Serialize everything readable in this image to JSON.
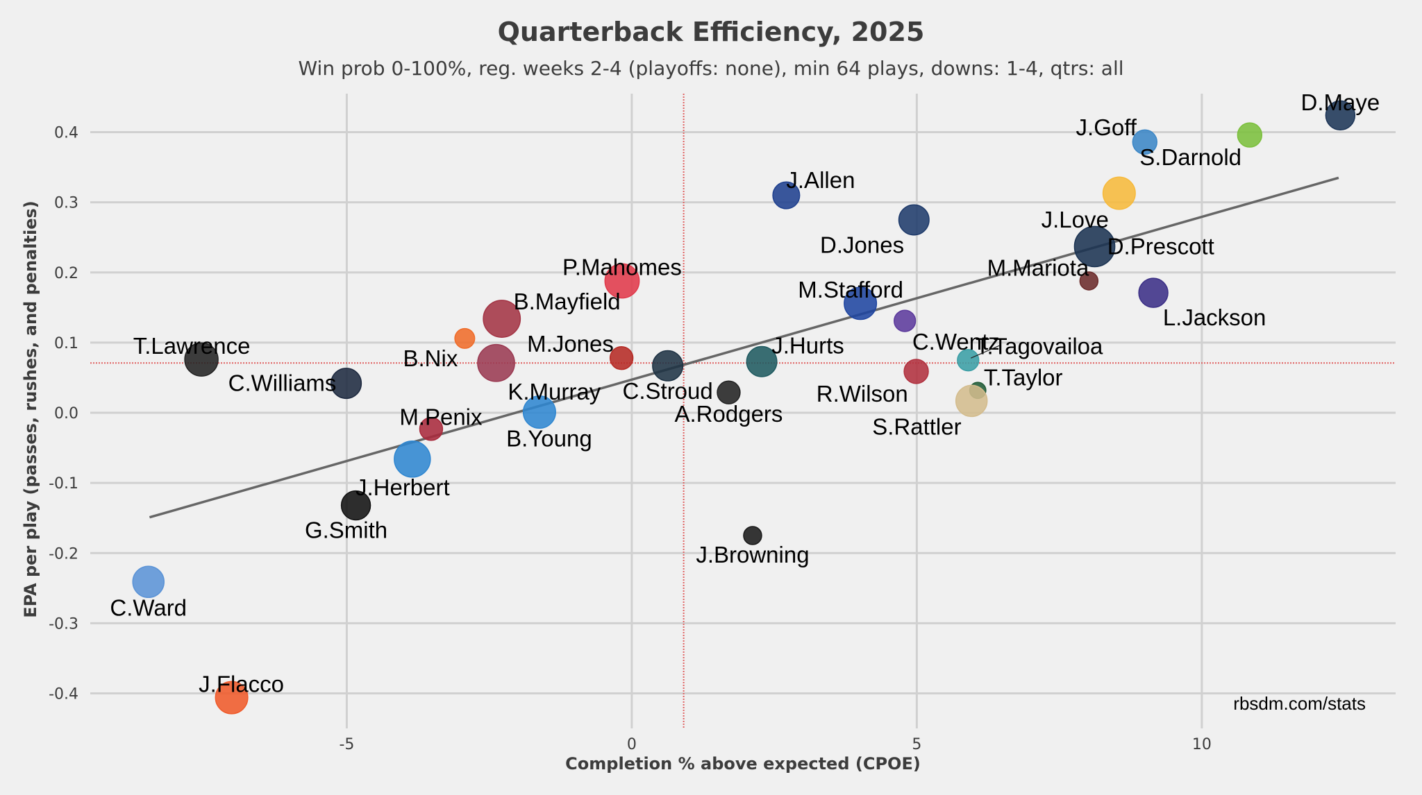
{
  "chart_data": {
    "type": "scatter",
    "title": "Quarterback Efficiency, 2025",
    "subtitle": "Win prob 0-100%, reg. weeks 2-4 (playoffs: none), min 64 plays, downs: 1-4, qtrs: all",
    "xlabel": "Completion % above expected (CPOE)",
    "ylabel": "EPA per play (passes, rushes, and penalties)",
    "xlim": [
      -9.5,
      13.4
    ],
    "ylim": [
      -0.44,
      0.45
    ],
    "x_ticks": [
      {
        "value": -5,
        "label": "-5"
      },
      {
        "value": 0,
        "label": "0"
      },
      {
        "value": 5,
        "label": "5"
      },
      {
        "value": 10,
        "label": "10"
      }
    ],
    "y_ticks": [
      {
        "value": 0.4,
        "label": "0.4"
      },
      {
        "value": 0.3,
        "label": "0.3"
      },
      {
        "value": 0.2,
        "label": "0.2"
      },
      {
        "value": 0.1,
        "label": "0.1"
      },
      {
        "value": 0.0,
        "label": "0.0"
      },
      {
        "value": -0.1,
        "label": "-0.1"
      },
      {
        "value": -0.2,
        "label": "-0.2"
      },
      {
        "value": -0.3,
        "label": "-0.3"
      },
      {
        "value": -0.4,
        "label": "-0.4"
      }
    ],
    "grid": true,
    "mean_lines": {
      "x": 0.91,
      "y": 0.071,
      "color": "#e06060"
    },
    "trend_line": {
      "x": [
        -8.46,
        12.4
      ],
      "y": [
        -0.149,
        0.335
      ],
      "color": "#666666"
    },
    "credit": "rbsdm.com/stats",
    "points": [
      {
        "name": "D.Maye",
        "x": 12.43,
        "y": 0.424,
        "size": 2.6,
        "color": "#1d3557",
        "label_dx": 0,
        "label_dy": -1,
        "anchor": "middle"
      },
      {
        "name": "S.Darnold",
        "x": 10.84,
        "y": 0.396,
        "size": 1.8,
        "color": "#7bbf3c",
        "label_dx": -1,
        "label_dy": 1,
        "anchor": "end"
      },
      {
        "name": "J.Goff",
        "x": 9.0,
        "y": 0.386,
        "size": 1.8,
        "color": "#3b86c6",
        "label_dx": -1,
        "label_dy": -1,
        "anchor": "end"
      },
      {
        "name": "J.Love",
        "x": 8.55,
        "y": 0.313,
        "size": 3.2,
        "color": "#f6b93b",
        "label_dx": -1,
        "label_dy": 1,
        "anchor": "end"
      },
      {
        "name": "J.Allen",
        "x": 2.71,
        "y": 0.31,
        "size": 2.2,
        "color": "#1f408e",
        "label_dx": 0,
        "label_dy": -1,
        "anchor": "start"
      },
      {
        "name": "D.Jones",
        "x": 4.95,
        "y": 0.275,
        "size": 2.8,
        "color": "#1f3b6b",
        "label_dx": -1,
        "label_dy": 1,
        "anchor": "end"
      },
      {
        "name": "D.Prescott",
        "x": 8.12,
        "y": 0.237,
        "size": 5.0,
        "color": "#1b3352",
        "label_dx": 1,
        "label_dy": 0,
        "anchor": "start"
      },
      {
        "name": "M.Mariota",
        "x": 8.02,
        "y": 0.188,
        "size": 1.0,
        "color": "#6b2a2a",
        "label_dx": 0,
        "label_dy": -1,
        "anchor": "end"
      },
      {
        "name": "L.Jackson",
        "x": 9.15,
        "y": 0.171,
        "size": 2.6,
        "color": "#3b2f86",
        "label_dx": 1,
        "label_dy": 1,
        "anchor": "start"
      },
      {
        "name": "P.Mahomes",
        "x": -0.17,
        "y": 0.188,
        "size": 3.6,
        "color": "#e0394a",
        "label_dx": 0,
        "label_dy": -1,
        "anchor": "middle"
      },
      {
        "name": "M.Stafford",
        "x": 4.01,
        "y": 0.156,
        "size": 3.2,
        "color": "#1f45a0",
        "label_dx": -1,
        "label_dy": -1,
        "anchor": "middle"
      },
      {
        "name": "C.Wentz",
        "x": 4.79,
        "y": 0.131,
        "size": 1.4,
        "color": "#5c3a9c",
        "label_dx": 1,
        "label_dy": 1,
        "anchor": "start"
      },
      {
        "name": "B.Mayfield",
        "x": -2.28,
        "y": 0.134,
        "size": 4.2,
        "color": "#a33444",
        "label_dx": 1,
        "label_dy": -1,
        "anchor": "start"
      },
      {
        "name": "B.Nix",
        "x": -2.93,
        "y": 0.106,
        "size": 1.2,
        "color": "#ef6c2a",
        "label_dx": -1,
        "label_dy": 1,
        "anchor": "end"
      },
      {
        "name": "K.Murray",
        "x": -2.38,
        "y": 0.071,
        "size": 4.2,
        "color": "#9a3a52",
        "label_dx": 1,
        "label_dy": 1,
        "anchor": "start"
      },
      {
        "name": "M.Jones",
        "x": -0.18,
        "y": 0.078,
        "size": 1.6,
        "color": "#b52a24",
        "label_dx": -1,
        "label_dy": -1,
        "anchor": "end"
      },
      {
        "name": "C.Stroud",
        "x": 0.63,
        "y": 0.067,
        "size": 2.8,
        "color": "#1f3344",
        "label_dx": 0,
        "label_dy": 1,
        "anchor": "middle"
      },
      {
        "name": "J.Hurts",
        "x": 2.28,
        "y": 0.073,
        "size": 2.8,
        "color": "#1f5a60",
        "label_dx": 1,
        "label_dy": -1,
        "anchor": "start"
      },
      {
        "name": "T.Lawrence",
        "x": -7.55,
        "y": 0.076,
        "size": 3.4,
        "color": "#222222",
        "label_dx": -1,
        "label_dy": -1,
        "anchor": "middle"
      },
      {
        "name": "C.Williams",
        "x": -5.01,
        "y": 0.042,
        "size": 2.8,
        "color": "#1e2a40",
        "label_dx": -1,
        "label_dy": 0,
        "anchor": "end"
      },
      {
        "name": "T.Tagovailoa",
        "x": 5.9,
        "y": 0.075,
        "size": 1.4,
        "color": "#3a9ea5",
        "label_dx": 1,
        "label_dy": -1,
        "anchor": "start"
      },
      {
        "name": "R.Wilson",
        "x": 4.99,
        "y": 0.059,
        "size": 1.8,
        "color": "#b0303e",
        "label_dx": -1,
        "label_dy": 1,
        "anchor": "end"
      },
      {
        "name": "T.Taylor",
        "x": 6.07,
        "y": 0.032,
        "size": 0.8,
        "color": "#1f5a35",
        "label_dx": 1,
        "label_dy": -1,
        "anchor": "start"
      },
      {
        "name": "S.Rattler",
        "x": 5.96,
        "y": 0.017,
        "size": 3.0,
        "color": "#d3bc8d",
        "label_dx": -1,
        "label_dy": 1,
        "anchor": "end"
      },
      {
        "name": "A.Rodgers",
        "x": 1.7,
        "y": 0.029,
        "size": 1.6,
        "color": "#222222",
        "label_dx": 0,
        "label_dy": 1,
        "anchor": "middle"
      },
      {
        "name": "B.Young",
        "x": -1.62,
        "y": 0.001,
        "size": 3.2,
        "color": "#2f86d0",
        "label_dx": 1,
        "label_dy": 1,
        "anchor": "middle"
      },
      {
        "name": "M.Penix",
        "x": -3.52,
        "y": -0.023,
        "size": 1.6,
        "color": "#a82a3c",
        "label_dx": 1,
        "label_dy": -1,
        "anchor": "middle"
      },
      {
        "name": "J.Herbert",
        "x": -3.85,
        "y": -0.066,
        "size": 4.0,
        "color": "#2f86d0",
        "label_dx": -1,
        "label_dy": 1,
        "anchor": "middle"
      },
      {
        "name": "G.Smith",
        "x": -4.84,
        "y": -0.132,
        "size": 2.6,
        "color": "#111111",
        "label_dx": -1,
        "label_dy": 1,
        "anchor": "middle"
      },
      {
        "name": "J.Browning",
        "x": 2.12,
        "y": -0.175,
        "size": 1.0,
        "color": "#1a1a1a",
        "label_dx": 0,
        "label_dy": 1,
        "anchor": "middle"
      },
      {
        "name": "C.Ward",
        "x": -8.48,
        "y": -0.241,
        "size": 3.0,
        "color": "#5b93d6",
        "label_dx": 0,
        "label_dy": 1,
        "anchor": "middle"
      },
      {
        "name": "J.Flacco",
        "x": -7.02,
        "y": -0.406,
        "size": 3.2,
        "color": "#ef5a2a",
        "label_dx": 1,
        "label_dy": -1,
        "anchor": "middle"
      }
    ]
  }
}
